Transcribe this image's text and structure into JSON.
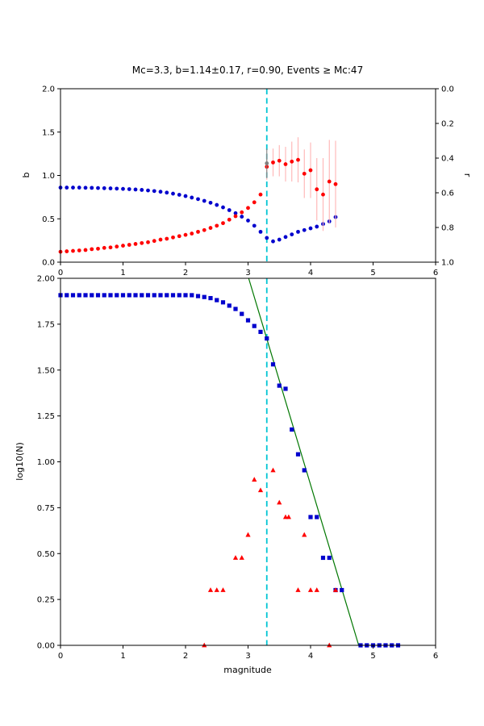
{
  "figure": {
    "title": "Mc=3.3, b=1.14±0.17, r=0.90, Events ≥ Mc:47"
  },
  "chart_data": [
    {
      "id": "b-r-vs-magnitude",
      "type": "scatter",
      "title": "Mc=3.3, b=1.14±0.17, r=0.90, Events ≥ Mc:47",
      "xlim": [
        0,
        6
      ],
      "ylim": [
        0,
        2
      ],
      "ylim_right": [
        0,
        1
      ],
      "ylabel_left": "b",
      "ylabel_right": "r",
      "xticks": [
        "0",
        "1",
        "2",
        "3",
        "4",
        "5",
        "6"
      ],
      "yticks_left": [
        "0.0",
        "0.5",
        "1.0",
        "1.5",
        "2.0"
      ],
      "yticks_right": [
        "0.0",
        "0.2",
        "0.4",
        "0.6",
        "0.8",
        "1.0"
      ],
      "grid": false,
      "vline": {
        "x": 3.3,
        "color": "#00c5d4",
        "style": "dashed"
      },
      "series": [
        {
          "name": "r-values",
          "marker": "circle",
          "color": "#0000cd",
          "points": [
            [
              0.0,
              0.86
            ],
            [
              0.1,
              0.86
            ],
            [
              0.2,
              0.86
            ],
            [
              0.3,
              0.86
            ],
            [
              0.4,
              0.858
            ],
            [
              0.5,
              0.857
            ],
            [
              0.6,
              0.855
            ],
            [
              0.7,
              0.853
            ],
            [
              0.8,
              0.851
            ],
            [
              0.9,
              0.848
            ],
            [
              1.0,
              0.845
            ],
            [
              1.1,
              0.842
            ],
            [
              1.2,
              0.838
            ],
            [
              1.3,
              0.833
            ],
            [
              1.4,
              0.827
            ],
            [
              1.5,
              0.82
            ],
            [
              1.6,
              0.812
            ],
            [
              1.7,
              0.802
            ],
            [
              1.8,
              0.79
            ],
            [
              1.9,
              0.777
            ],
            [
              2.0,
              0.762
            ],
            [
              2.1,
              0.745
            ],
            [
              2.2,
              0.727
            ],
            [
              2.3,
              0.707
            ],
            [
              2.4,
              0.685
            ],
            [
              2.5,
              0.66
            ],
            [
              2.6,
              0.632
            ],
            [
              2.7,
              0.6
            ],
            [
              2.8,
              0.565
            ],
            [
              2.9,
              0.525
            ],
            [
              3.0,
              0.48
            ],
            [
              3.1,
              0.42
            ],
            [
              3.2,
              0.35
            ],
            [
              3.3,
              0.28
            ],
            [
              3.4,
              0.24
            ],
            [
              3.5,
              0.26
            ],
            [
              3.6,
              0.29
            ],
            [
              3.7,
              0.32
            ],
            [
              3.8,
              0.35
            ],
            [
              3.9,
              0.37
            ],
            [
              4.0,
              0.39
            ],
            [
              4.1,
              0.41
            ],
            [
              4.2,
              0.44
            ],
            [
              4.3,
              0.47
            ],
            [
              4.4,
              0.52
            ]
          ]
        },
        {
          "name": "b-values",
          "marker": "circle",
          "color": "#ff0000",
          "err_color": "#ffb3b3",
          "points": [
            [
              0.0,
              0.12
            ],
            [
              0.1,
              0.125
            ],
            [
              0.2,
              0.13
            ],
            [
              0.3,
              0.135
            ],
            [
              0.4,
              0.14
            ],
            [
              0.5,
              0.15
            ],
            [
              0.6,
              0.155
            ],
            [
              0.7,
              0.165
            ],
            [
              0.8,
              0.17
            ],
            [
              0.9,
              0.18
            ],
            [
              1.0,
              0.19
            ],
            [
              1.1,
              0.2
            ],
            [
              1.2,
              0.21
            ],
            [
              1.3,
              0.22
            ],
            [
              1.4,
              0.23
            ],
            [
              1.5,
              0.245
            ],
            [
              1.6,
              0.26
            ],
            [
              1.7,
              0.27
            ],
            [
              1.8,
              0.285
            ],
            [
              1.9,
              0.3
            ],
            [
              2.0,
              0.315
            ],
            [
              2.1,
              0.33
            ],
            [
              2.2,
              0.35
            ],
            [
              2.3,
              0.37
            ],
            [
              2.4,
              0.395
            ],
            [
              2.5,
              0.42
            ],
            [
              2.6,
              0.45
            ],
            [
              2.7,
              0.49
            ],
            [
              2.8,
              0.53
            ],
            [
              2.9,
              0.575
            ],
            [
              3.0,
              0.625
            ],
            [
              3.1,
              0.69
            ],
            [
              3.2,
              0.78
            ],
            [
              3.3,
              1.1
            ],
            [
              3.4,
              1.15
            ],
            [
              3.5,
              1.17
            ],
            [
              3.6,
              1.13
            ],
            [
              3.7,
              1.16
            ],
            [
              3.8,
              1.18
            ],
            [
              3.9,
              1.02
            ],
            [
              4.0,
              1.06
            ],
            [
              4.1,
              0.84
            ],
            [
              4.2,
              0.78
            ],
            [
              4.3,
              0.93
            ],
            [
              4.4,
              0.9
            ]
          ],
          "yerr": [
            0,
            0,
            0,
            0,
            0,
            0,
            0,
            0,
            0,
            0,
            0,
            0,
            0,
            0,
            0,
            0,
            0,
            0,
            0,
            0,
            0,
            0,
            0,
            0,
            0,
            0,
            0,
            0,
            0,
            0,
            0,
            0,
            0,
            0.15,
            0.16,
            0.18,
            0.2,
            0.23,
            0.26,
            0.28,
            0.32,
            0.36,
            0.42,
            0.48,
            0.5
          ]
        },
        {
          "name": "b-at-mc",
          "marker": "circle",
          "color": "#808080",
          "err_color": "#808080",
          "points": [
            [
              3.3,
              1.14
            ]
          ],
          "yerr": [
            0.17
          ]
        }
      ]
    },
    {
      "id": "frequency-magnitude-distribution",
      "type": "scatter",
      "xlabel": "magnitude",
      "ylabel": "log10(N)",
      "xlim": [
        0,
        6
      ],
      "ylim": [
        0,
        2
      ],
      "xticks": [
        "0",
        "1",
        "2",
        "3",
        "4",
        "5",
        "6"
      ],
      "yticks_left": [
        "0.00",
        "0.25",
        "0.50",
        "0.75",
        "1.00",
        "1.25",
        "1.50",
        "1.75",
        "2.00"
      ],
      "grid": false,
      "vline": {
        "x": 3.3,
        "color": "#00c5d4",
        "style": "dashed"
      },
      "series": [
        {
          "name": "gutenberg-richter-fit",
          "type": "line",
          "color": "#007700",
          "points": [
            [
              3.01,
              2.0
            ],
            [
              4.77,
              0.0
            ]
          ]
        },
        {
          "name": "cumulative-counts",
          "marker": "square",
          "color": "#0000cd",
          "points": [
            [
              0.0,
              1.908
            ],
            [
              0.1,
              1.908
            ],
            [
              0.2,
              1.908
            ],
            [
              0.3,
              1.908
            ],
            [
              0.4,
              1.908
            ],
            [
              0.5,
              1.908
            ],
            [
              0.6,
              1.908
            ],
            [
              0.7,
              1.908
            ],
            [
              0.8,
              1.908
            ],
            [
              0.9,
              1.908
            ],
            [
              1.0,
              1.908
            ],
            [
              1.1,
              1.908
            ],
            [
              1.2,
              1.908
            ],
            [
              1.3,
              1.908
            ],
            [
              1.4,
              1.908
            ],
            [
              1.5,
              1.908
            ],
            [
              1.6,
              1.908
            ],
            [
              1.7,
              1.908
            ],
            [
              1.8,
              1.908
            ],
            [
              1.9,
              1.908
            ],
            [
              2.0,
              1.908
            ],
            [
              2.1,
              1.908
            ],
            [
              2.2,
              1.903
            ],
            [
              2.3,
              1.898
            ],
            [
              2.4,
              1.892
            ],
            [
              2.5,
              1.881
            ],
            [
              2.6,
              1.869
            ],
            [
              2.7,
              1.851
            ],
            [
              2.8,
              1.833
            ],
            [
              2.9,
              1.806
            ],
            [
              3.0,
              1.771
            ],
            [
              3.1,
              1.74
            ],
            [
              3.2,
              1.708
            ],
            [
              3.3,
              1.672
            ],
            [
              3.4,
              1.531
            ],
            [
              3.5,
              1.415
            ],
            [
              3.6,
              1.398
            ],
            [
              3.7,
              1.176
            ],
            [
              3.8,
              1.041
            ],
            [
              3.9,
              0.954
            ],
            [
              4.0,
              0.699
            ],
            [
              4.1,
              0.699
            ],
            [
              4.2,
              0.477
            ],
            [
              4.3,
              0.477
            ],
            [
              4.4,
              0.301
            ],
            [
              4.5,
              0.301
            ],
            [
              4.8,
              0.0
            ],
            [
              4.9,
              0.0
            ],
            [
              5.0,
              0.0
            ],
            [
              5.1,
              0.0
            ],
            [
              5.2,
              0.0
            ],
            [
              5.3,
              0.0
            ],
            [
              5.4,
              0.0
            ]
          ]
        },
        {
          "name": "incremental-counts",
          "marker": "triangle",
          "color": "#ff0000",
          "points": [
            [
              2.3,
              0.0
            ],
            [
              2.4,
              0.301
            ],
            [
              2.5,
              0.301
            ],
            [
              2.6,
              0.301
            ],
            [
              2.8,
              0.477
            ],
            [
              2.9,
              0.477
            ],
            [
              3.0,
              0.602
            ],
            [
              3.1,
              0.903
            ],
            [
              3.2,
              0.845
            ],
            [
              3.4,
              0.954
            ],
            [
              3.5,
              0.778
            ],
            [
              3.6,
              0.699
            ],
            [
              3.65,
              0.699
            ],
            [
              3.8,
              0.301
            ],
            [
              3.9,
              0.602
            ],
            [
              4.0,
              0.301
            ],
            [
              4.1,
              0.301
            ],
            [
              4.3,
              0.0
            ],
            [
              4.4,
              0.301
            ]
          ]
        }
      ]
    }
  ]
}
